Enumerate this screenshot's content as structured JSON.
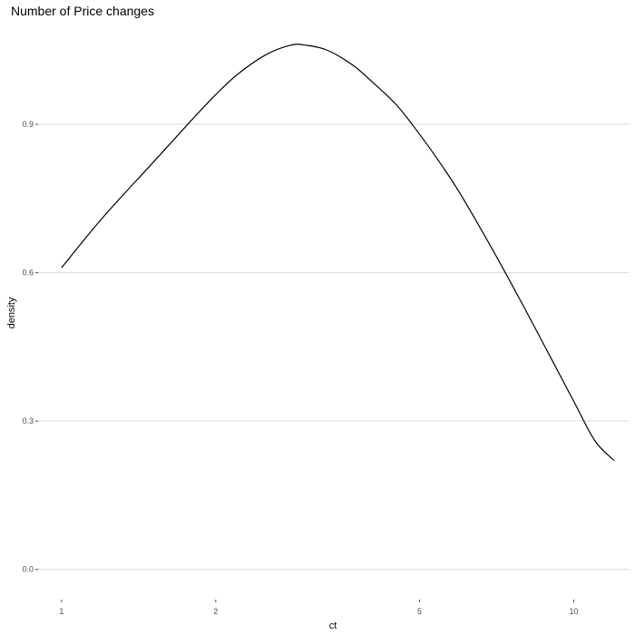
{
  "chart_data": {
    "type": "line",
    "title": "Number of Price changes",
    "xlabel": "ct",
    "ylabel": "density",
    "x_scale": "log10",
    "xlim": [
      0.9,
      12.8
    ],
    "ylim": [
      -0.05,
      1.1
    ],
    "x_ticks": [
      {
        "value": 1,
        "label": "1"
      },
      {
        "value": 2,
        "label": "2"
      },
      {
        "value": 5,
        "label": "5"
      },
      {
        "value": 10,
        "label": "10"
      }
    ],
    "y_ticks": [
      {
        "value": 0.0,
        "label": "0.0"
      },
      {
        "value": 0.3,
        "label": "0.3"
      },
      {
        "value": 0.6,
        "label": "0.6"
      },
      {
        "value": 0.9,
        "label": "0.9"
      }
    ],
    "grid": {
      "horizontal": true,
      "vertical": false
    },
    "line_color": "#000000",
    "series": [
      {
        "x": [
          1.0,
          1.2,
          1.5,
          1.8,
          2.0,
          2.2,
          2.5,
          2.8,
          3.0,
          3.3,
          3.7,
          4.0,
          4.5,
          5.0,
          5.5,
          6.0,
          7.0,
          8.0,
          9.0,
          10.0,
          11.0,
          12.0
        ],
        "y": [
          0.61,
          0.71,
          0.82,
          0.91,
          0.96,
          1.0,
          1.04,
          1.06,
          1.06,
          1.05,
          1.02,
          0.99,
          0.94,
          0.88,
          0.82,
          0.76,
          0.64,
          0.53,
          0.43,
          0.34,
          0.26,
          0.22
        ]
      }
    ]
  }
}
